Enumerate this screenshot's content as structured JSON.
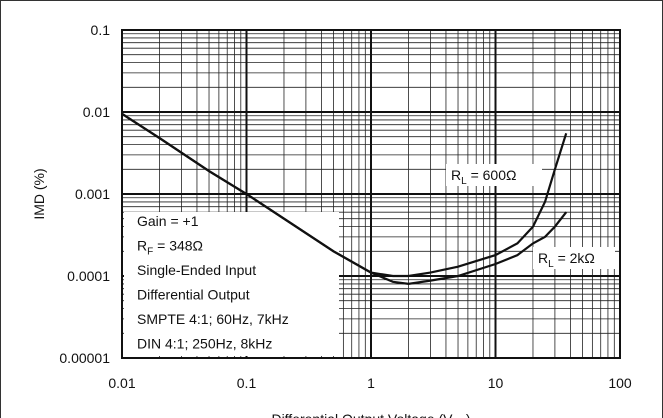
{
  "chart_data": {
    "type": "line",
    "log_x": true,
    "log_y": true,
    "grid": true,
    "minor_grid": true,
    "x_label": [
      "Differential Output Voltage (V",
      "PP",
      ")"
    ],
    "y_label": "IMD (%)",
    "xlim": [
      0.01,
      100
    ],
    "xticks": [
      0.01,
      0.1,
      1,
      10,
      100
    ],
    "ylim": [
      1e-05,
      0.1
    ],
    "yticks": [
      1e-05,
      0.0001,
      0.001,
      0.01,
      0.1
    ],
    "x": [
      0.01,
      0.02,
      0.05,
      0.1,
      0.2,
      0.5,
      1,
      1.5,
      2,
      3,
      5,
      10,
      15,
      20,
      25,
      30,
      37
    ],
    "series": [
      {
        "name": [
          "R",
          "L",
          " = 600Ω"
        ],
        "color": "#111111",
        "values": [
          0.0095,
          0.0048,
          0.0019,
          0.001,
          0.0005,
          0.0002,
          0.00011,
          0.0001,
          0.0001,
          0.00011,
          0.00013,
          0.00018,
          0.00025,
          0.0004,
          0.0008,
          0.002,
          0.0055
        ]
      },
      {
        "name": [
          "R",
          "L",
          " = 2kΩ"
        ],
        "color": "#111111",
        "values": [
          0.0095,
          0.0048,
          0.0019,
          0.001,
          0.0005,
          0.0002,
          0.00011,
          8.5e-05,
          8e-05,
          8.8e-05,
          0.0001,
          0.00014,
          0.00018,
          0.00025,
          0.0003,
          0.0004,
          0.0006
        ]
      }
    ],
    "notes": [
      [
        "Gain = +1"
      ],
      [
        "R",
        "F",
        " = 348Ω"
      ],
      [
        "Single-Ended Input"
      ],
      [
        "Differential Output"
      ],
      [
        "SMPTE 4:1; 60Hz, 7kHz"
      ],
      [
        "DIN 4:1; 250Hz, 8kHz"
      ]
    ]
  }
}
